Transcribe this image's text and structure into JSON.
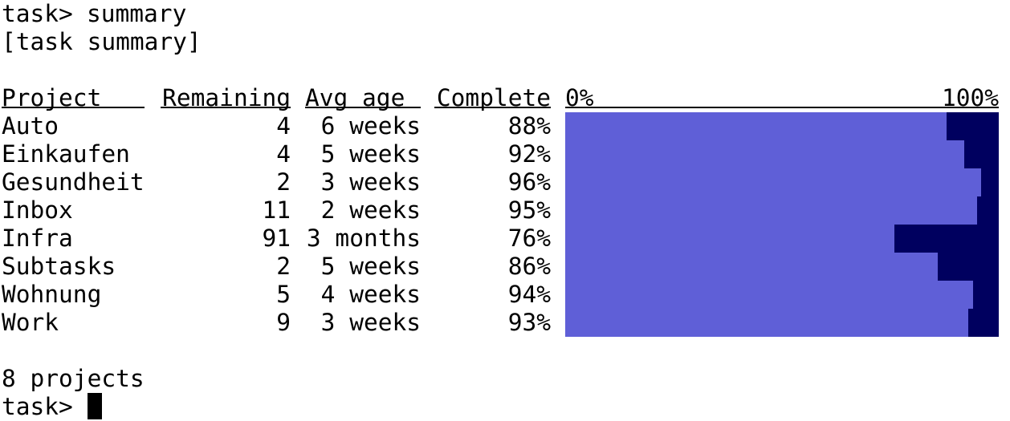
{
  "prompt_line": {
    "prompt": "task>",
    "command": "summary"
  },
  "report_tag": "[task summary]",
  "headers": {
    "project": "Project",
    "remaining": "Remaining",
    "avg_age": "Avg age",
    "complete": "Complete",
    "scale_min": "0%",
    "scale_max": "100%"
  },
  "colors": {
    "done": "#5f5fd7",
    "remaining": "#00005f"
  },
  "rows": [
    {
      "project": "Auto",
      "remaining": "4",
      "avg_age": "6 weeks",
      "complete": "88%",
      "pct": 88
    },
    {
      "project": "Einkaufen",
      "remaining": "4",
      "avg_age": "5 weeks",
      "complete": "92%",
      "pct": 92
    },
    {
      "project": "Gesundheit",
      "remaining": "2",
      "avg_age": "3 weeks",
      "complete": "96%",
      "pct": 96
    },
    {
      "project": "Inbox",
      "remaining": "11",
      "avg_age": "2 weeks",
      "complete": "95%",
      "pct": 95
    },
    {
      "project": "Infra",
      "remaining": "91",
      "avg_age": "3 months",
      "complete": "76%",
      "pct": 76
    },
    {
      "project": "Subtasks",
      "remaining": "2",
      "avg_age": "5 weeks",
      "complete": "86%",
      "pct": 86
    },
    {
      "project": "Wohnung",
      "remaining": "5",
      "avg_age": "4 weeks",
      "complete": "94%",
      "pct": 94
    },
    {
      "project": "Work",
      "remaining": "9",
      "avg_age": "3 weeks",
      "complete": "93%",
      "pct": 93
    }
  ],
  "footer": "8 projects",
  "final_prompt": "task>"
}
